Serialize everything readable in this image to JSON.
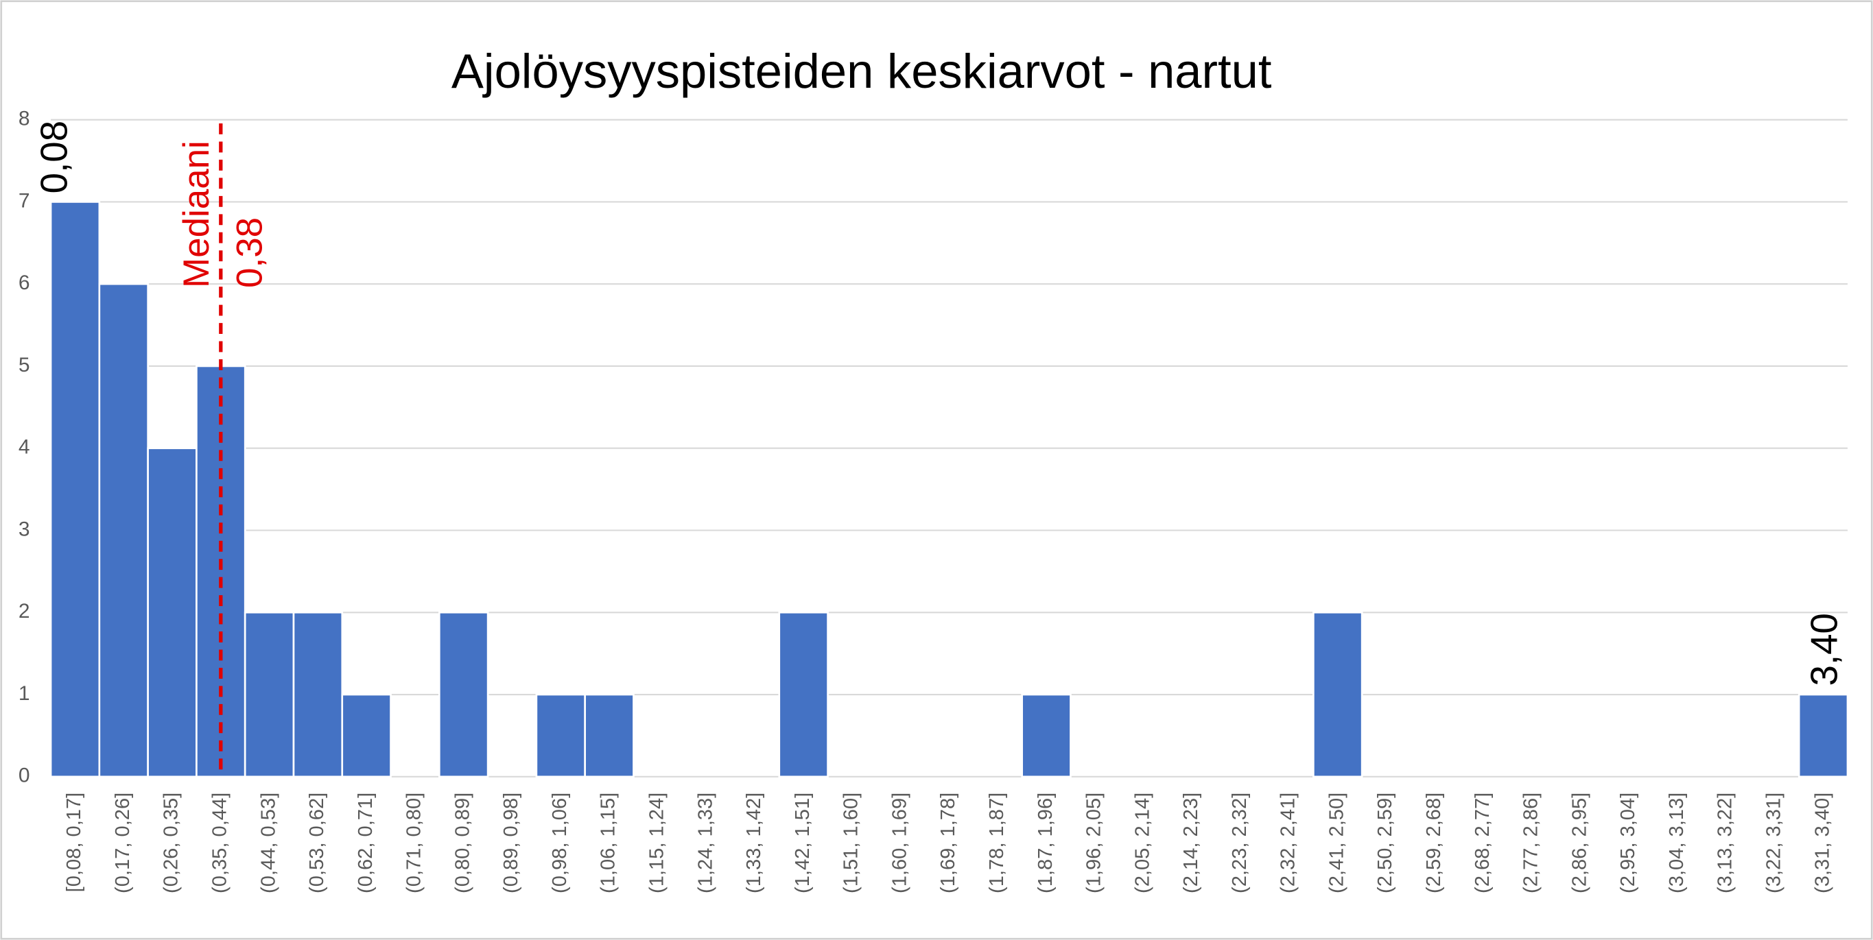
{
  "chart_data": {
    "type": "bar",
    "title": "Ajolöysyyspisteiden keskiarvot - nartut",
    "categories": [
      "[0,08, 0,17]",
      "(0,17, 0,26]",
      "(0,26, 0,35]",
      "(0,35, 0,44]",
      "(0,44, 0,53]",
      "(0,53, 0,62]",
      "(0,62, 0,71]",
      "(0,71, 0,80]",
      "(0,80, 0,89]",
      "(0,89, 0,98]",
      "(0,98, 1,06]",
      "(1,06, 1,15]",
      "(1,15, 1,24]",
      "(1,24, 1,33]",
      "(1,33, 1,42]",
      "(1,42, 1,51]",
      "(1,51, 1,60]",
      "(1,60, 1,69]",
      "(1,69, 1,78]",
      "(1,78, 1,87]",
      "(1,87, 1,96]",
      "(1,96, 2,05]",
      "(2,05, 2,14]",
      "(2,14, 2,23]",
      "(2,23, 2,32]",
      "(2,32, 2,41]",
      "(2,41, 2,50]",
      "(2,50, 2,59]",
      "(2,59, 2,68]",
      "(2,68, 2,77]",
      "(2,77, 2,86]",
      "(2,86, 2,95]",
      "(2,95, 3,04]",
      "(3,04, 3,13]",
      "(3,13, 3,22]",
      "(3,22, 3,31]",
      "(3,31, 3,40]"
    ],
    "values": [
      7,
      6,
      4,
      5,
      2,
      2,
      1,
      0,
      2,
      0,
      1,
      1,
      0,
      0,
      0,
      2,
      0,
      0,
      0,
      0,
      1,
      0,
      0,
      0,
      0,
      0,
      2,
      0,
      0,
      0,
      0,
      0,
      0,
      0,
      0,
      0,
      1
    ],
    "color": "#4472c4",
    "ylim": [
      0,
      8
    ],
    "yticks": [
      0,
      1,
      2,
      3,
      4,
      5,
      6,
      7,
      8
    ],
    "grid": true,
    "annotations": {
      "start": "0,08",
      "end": "3,40",
      "median_label": "Mediaani",
      "median_value": "0,38",
      "median_color": "#e00000"
    }
  }
}
